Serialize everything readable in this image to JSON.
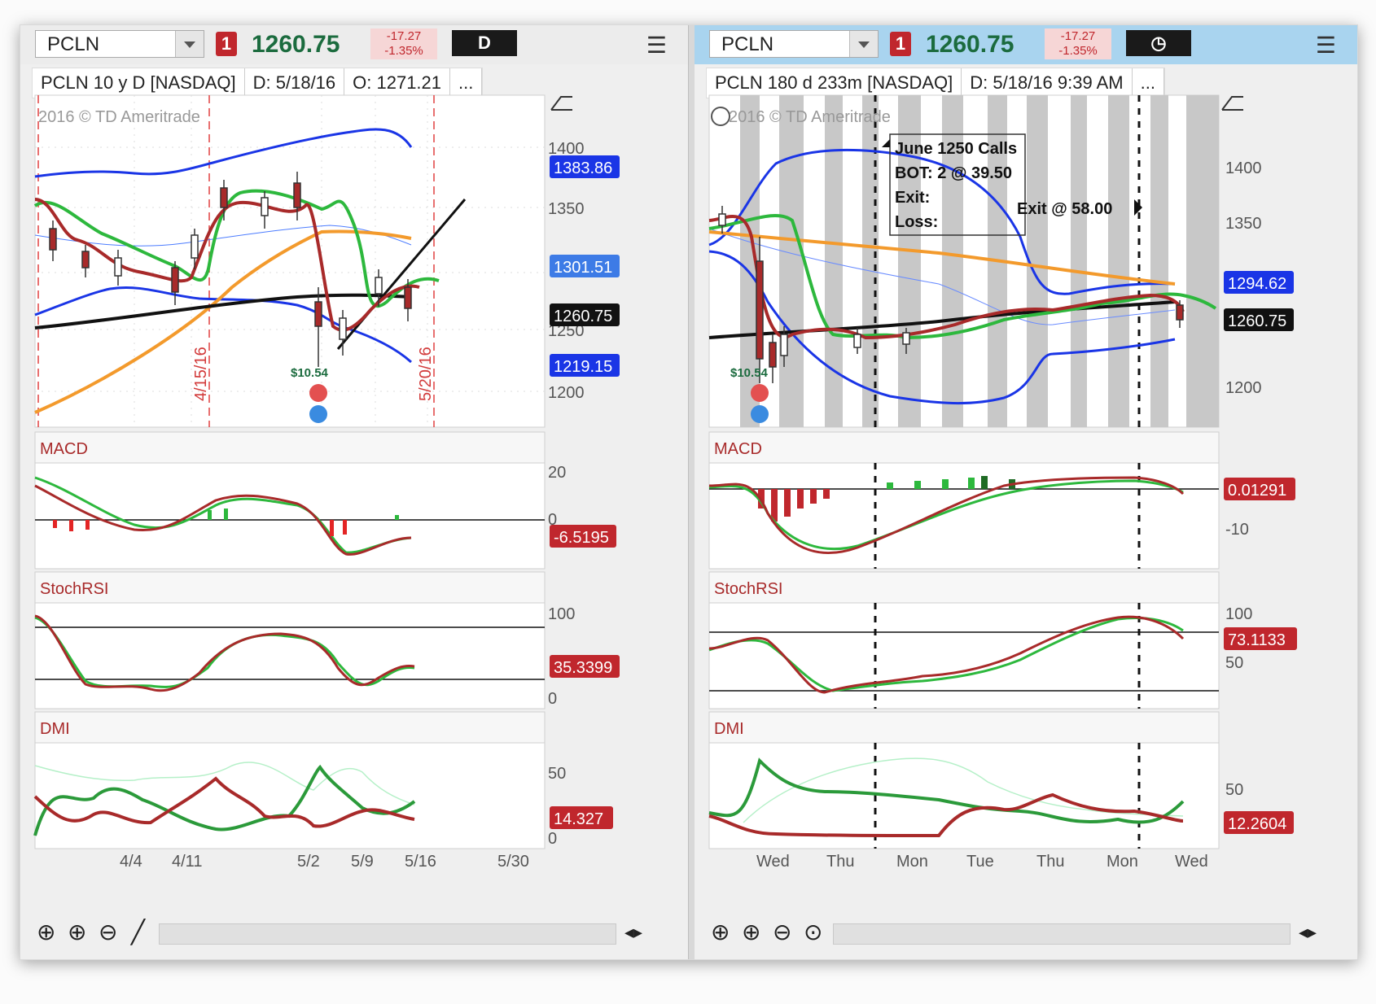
{
  "left": {
    "symbol": "PCLN",
    "alert_count": "1",
    "last_price": "1260.75",
    "change": "-17.27",
    "change_pct": "-1.35%",
    "period": "D",
    "header": {
      "title": "PCLN 10 y D [NASDAQ]",
      "date": "D:  5/18/16",
      "open": "O:  1271.21",
      "more": "..."
    },
    "watermark": "2016 © TD Ameritrade",
    "price_scale": [
      "1400",
      "1350",
      "1250",
      "1200"
    ],
    "price_labels": {
      "upper_band": "1383.86",
      "mid": "1301.51",
      "last": "1260.75",
      "lower_band": "1219.15"
    },
    "vlines": {
      "a": "4/15/16",
      "b": "5/20/16"
    },
    "event_label": "$10.54",
    "macd": {
      "title": "MACD",
      "scale": [
        "20",
        "0"
      ],
      "value": "-6.5195"
    },
    "stochrsi": {
      "title": "StochRSI",
      "scale": [
        "100",
        "0"
      ],
      "value": "35.3399"
    },
    "dmi": {
      "title": "DMI",
      "scale": [
        "50",
        "0"
      ],
      "value": "14.327"
    },
    "x_labels": [
      "4/4",
      "4/11",
      "5/2",
      "5/9",
      "5/16",
      "5/30"
    ]
  },
  "right": {
    "symbol": "PCLN",
    "alert_count": "1",
    "last_price": "1260.75",
    "change": "-17.27",
    "change_pct": "-1.35%",
    "header": {
      "title": "PCLN 180 d 233m [NASDAQ]",
      "date": "D:  5/18/16 9:39 AM",
      "more": "..."
    },
    "watermark": "2016 © TD Ameritrade",
    "price_scale": [
      "1400",
      "1350",
      "1200"
    ],
    "price_labels": {
      "band": "1294.62",
      "last": "1260.75"
    },
    "trade_note": {
      "line1": "June 1250 Calls",
      "line2": "BOT: 2 @ 39.50",
      "line3": "Exit:",
      "line4": "Loss:",
      "exit": "Exit @ 58.00"
    },
    "event_label": "$10.54",
    "macd": {
      "title": "MACD",
      "scale": [
        "-10"
      ],
      "value": "0.01291"
    },
    "stochrsi": {
      "title": "StochRSI",
      "scale": [
        "100",
        "50"
      ],
      "value": "73.1133"
    },
    "dmi": {
      "title": "DMI",
      "scale": [
        "50"
      ],
      "value": "12.2604"
    },
    "x_labels": [
      "Wed",
      "Thu",
      "Mon",
      "Tue",
      "Thu",
      "Mon",
      "Wed"
    ]
  },
  "colors": {
    "up": "#2db83d",
    "down": "#a82a2a",
    "band": "#1a35e6",
    "sma": "#f39a2c",
    "long": "#111111",
    "green_label": "#1b6b3e",
    "red_label": "#c0272d",
    "blue_label": "#1a35e6"
  }
}
